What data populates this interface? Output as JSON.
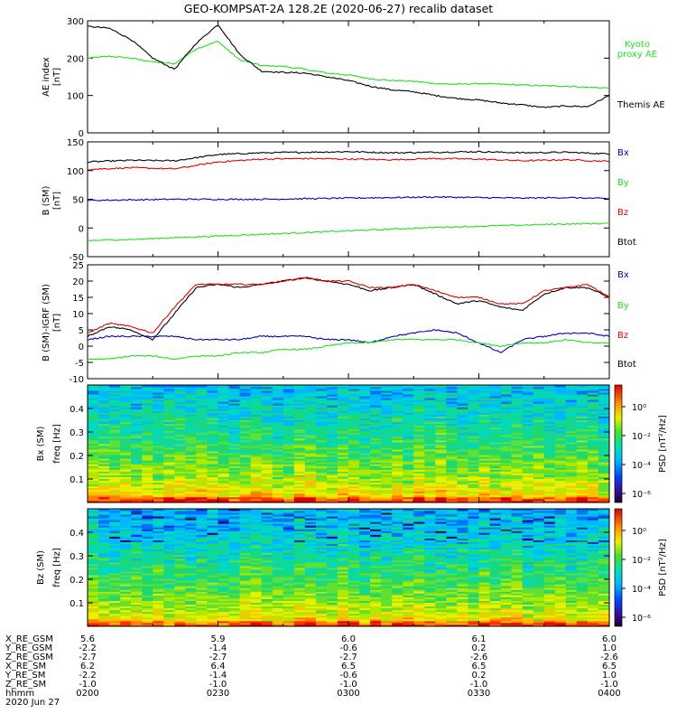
{
  "title": "GEO-KOMPSAT-2A 128.2E (2020-06-27) recalib dataset",
  "colors": {
    "black": "#000000",
    "red": "#e00000",
    "green": "#22dd22",
    "blue": "#0000bb"
  },
  "chart_data": [
    {
      "type": "line",
      "panel": "AE index",
      "ylabel": "AE index",
      "yunit": "[nT]",
      "ylim": [
        0,
        300
      ],
      "yticks": [
        "0",
        "100",
        "200",
        "300"
      ],
      "legend": [
        "Kyoto",
        "proxy AE",
        "Themis AE"
      ],
      "x": [
        "02:00",
        "02:05",
        "02:10",
        "02:15",
        "02:20",
        "02:25",
        "02:30",
        "02:35",
        "02:40",
        "02:45",
        "02:50",
        "02:55",
        "03:00",
        "03:05",
        "03:10",
        "03:15",
        "03:20",
        "03:25",
        "03:30",
        "03:35",
        "03:40",
        "03:45",
        "03:50",
        "03:55",
        "04:00"
      ],
      "series": [
        {
          "name": "Kyoto proxy AE",
          "color": "#22dd22",
          "values": [
            200,
            205,
            200,
            190,
            185,
            225,
            245,
            195,
            180,
            178,
            170,
            160,
            155,
            145,
            140,
            138,
            132,
            130,
            132,
            130,
            128,
            126,
            125,
            122,
            120
          ]
        },
        {
          "name": "Themis AE",
          "color": "#000000",
          "values": [
            285,
            280,
            250,
            200,
            170,
            240,
            290,
            210,
            165,
            162,
            160,
            150,
            140,
            125,
            115,
            110,
            100,
            92,
            88,
            80,
            75,
            68,
            72,
            70,
            100
          ]
        }
      ]
    },
    {
      "type": "line",
      "panel": "B (SM)",
      "ylabel": "B (SM)",
      "yunit": "[nT]",
      "ylim": [
        -50,
        150
      ],
      "yticks": [
        "-50",
        "0",
        "50",
        "100",
        "150"
      ],
      "legend": [
        "Bx",
        "By",
        "Bz",
        "Btot"
      ],
      "x": [
        "02:00",
        "02:10",
        "02:20",
        "02:30",
        "02:40",
        "02:50",
        "03:00",
        "03:10",
        "03:20",
        "03:30",
        "03:40",
        "03:50",
        "04:00"
      ],
      "series": [
        {
          "name": "Btot",
          "color": "#000000",
          "values": [
            115,
            118,
            117,
            128,
            131,
            132,
            133,
            131,
            132,
            133,
            131,
            132,
            129
          ]
        },
        {
          "name": "Bz",
          "color": "#e00000",
          "values": [
            102,
            105,
            103,
            115,
            120,
            121,
            120,
            119,
            121,
            120,
            117,
            119,
            116
          ]
        },
        {
          "name": "Bx",
          "color": "#0000bb",
          "values": [
            48,
            49,
            50,
            50,
            50,
            51,
            52,
            53,
            54,
            53,
            52,
            53,
            51
          ]
        },
        {
          "name": "By",
          "color": "#22dd22",
          "values": [
            -22,
            -20,
            -17,
            -14,
            -11,
            -8,
            -5,
            -2,
            1,
            3,
            5,
            7,
            8
          ]
        }
      ]
    },
    {
      "type": "line",
      "panel": "B (SM)-IGRF (SM)",
      "ylabel": "B (SM)-IGRF (SM)",
      "yunit": "[nT]",
      "ylim": [
        -10,
        25
      ],
      "yticks": [
        "-10",
        "-5",
        "0",
        "5",
        "10",
        "15",
        "20",
        "25"
      ],
      "legend": [
        "Bx",
        "By",
        "Bz",
        "Btot"
      ],
      "x": [
        "02:00",
        "02:05",
        "02:10",
        "02:15",
        "02:20",
        "02:25",
        "02:30",
        "02:35",
        "02:40",
        "02:45",
        "02:50",
        "02:55",
        "03:00",
        "03:05",
        "03:10",
        "03:15",
        "03:20",
        "03:25",
        "03:30",
        "03:35",
        "03:40",
        "03:45",
        "03:50",
        "03:55",
        "04:00"
      ],
      "series": [
        {
          "name": "Btot",
          "color": "#000000",
          "values": [
            3,
            6,
            5,
            2,
            10,
            18,
            19,
            18,
            19,
            20,
            21,
            20,
            19,
            17,
            18,
            19,
            16,
            13,
            14,
            12,
            11,
            16,
            18,
            18,
            15
          ]
        },
        {
          "name": "Bz",
          "color": "#e00000",
          "values": [
            4,
            7,
            6,
            4,
            12,
            19,
            19,
            19,
            19,
            20,
            21,
            20,
            20,
            18,
            18,
            19,
            17,
            15,
            15,
            13,
            13,
            17,
            18,
            19,
            15
          ]
        },
        {
          "name": "Bx",
          "color": "#0000bb",
          "values": [
            2,
            3,
            3,
            3,
            3,
            2,
            2,
            2,
            3,
            3,
            3,
            2,
            2,
            1,
            3,
            4,
            5,
            4,
            1,
            -2,
            2,
            3,
            4,
            4,
            3
          ]
        },
        {
          "name": "By",
          "color": "#22dd22",
          "values": [
            -4,
            -4,
            -3,
            -3,
            -4,
            -3,
            -3,
            -2,
            -2,
            -1,
            -1,
            0,
            1,
            1,
            2,
            2,
            2,
            2,
            1,
            0,
            1,
            1,
            2,
            1,
            1
          ]
        }
      ]
    },
    {
      "type": "heatmap",
      "panel": "Bx spectrogram",
      "ylabel": "Bx (SM)",
      "yunit": "freq [Hz]",
      "ylim": [
        0,
        0.5
      ],
      "yticks": [
        "0.1",
        "0.2",
        "0.3",
        "0.4"
      ],
      "colorbar": {
        "label": "PSD [nT²/Hz]",
        "ticks": [
          "10⁰",
          "10⁻²",
          "10⁻⁴",
          "10⁻⁶"
        ]
      }
    },
    {
      "type": "heatmap",
      "panel": "Bz spectrogram",
      "ylabel": "Bz (SM)",
      "yunit": "freq [Hz]",
      "ylim": [
        0,
        0.5
      ],
      "yticks": [
        "0.1",
        "0.2",
        "0.3",
        "0.4"
      ],
      "colorbar": {
        "label": "PSD [nT²/Hz]",
        "ticks": [
          "10⁰",
          "10⁻²",
          "10⁻⁴",
          "10⁻⁶"
        ]
      }
    }
  ],
  "ephemeris": {
    "row_labels": [
      "X_RE_GSM",
      "Y_RE_GSM",
      "Z_RE_GSM",
      "X_RE_SM",
      "Y_RE_SM",
      "Z_RE_SM",
      "hhmm",
      "2020 Jun 27"
    ],
    "columns": [
      [
        "5.6",
        "-2.2",
        "-2.7",
        "6.2",
        "-2.2",
        "-1.0",
        "0200"
      ],
      [
        "5.9",
        "-1.4",
        "-2.7",
        "6.4",
        "-1.4",
        "-1.0",
        "0230"
      ],
      [
        "6.0",
        "-0.6",
        "-2.7",
        "6.5",
        "-0.6",
        "-1.0",
        "0300"
      ],
      [
        "6.1",
        "0.2",
        "-2.6",
        "6.5",
        "0.2",
        "-1.0",
        "0330"
      ],
      [
        "6.0",
        "1.0",
        "-2.6",
        "6.5",
        "1.0",
        "-1.0",
        "0400"
      ]
    ]
  }
}
